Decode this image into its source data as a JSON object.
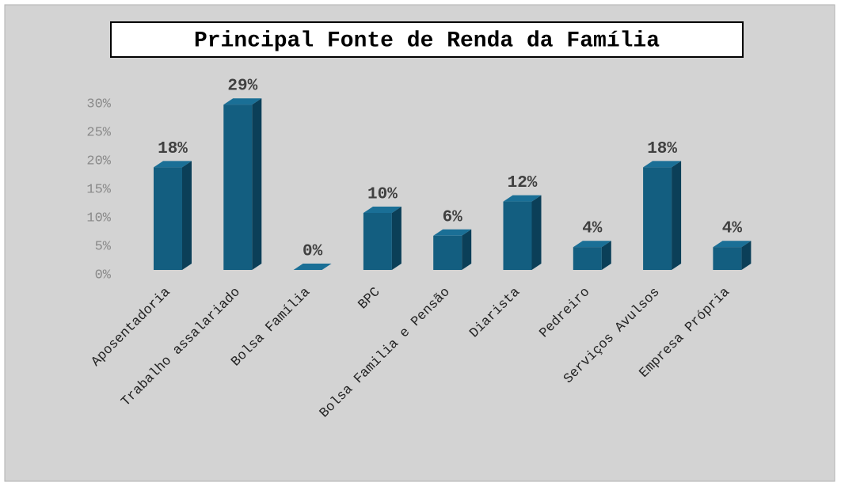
{
  "chart_data": {
    "type": "bar",
    "title": "Principal Fonte de Renda da Família",
    "categories": [
      "Aposentadoria",
      "Trabalho assalariado",
      "Bolsa Família",
      "BPC",
      "Bolsa Familia e Pensão",
      "Diarista",
      "Pedreiro",
      "Serviços Avulsos",
      "Empresa Própria"
    ],
    "values": [
      18,
      29,
      0,
      10,
      6,
      12,
      4,
      18,
      4
    ],
    "value_labels": [
      "18%",
      "29%",
      "0%",
      "10%",
      "6%",
      "12%",
      "4%",
      "18%",
      "4%"
    ],
    "color": "#135e80",
    "ylim": [
      0,
      30
    ],
    "yticks": [
      {
        "value": 0,
        "label": "0%"
      },
      {
        "value": 5,
        "label": "5%"
      },
      {
        "value": 10,
        "label": "10%"
      },
      {
        "value": 15,
        "label": "15%"
      },
      {
        "value": 20,
        "label": "20%"
      },
      {
        "value": 25,
        "label": "25%"
      },
      {
        "value": 30,
        "label": "30%"
      }
    ],
    "grid": false
  }
}
